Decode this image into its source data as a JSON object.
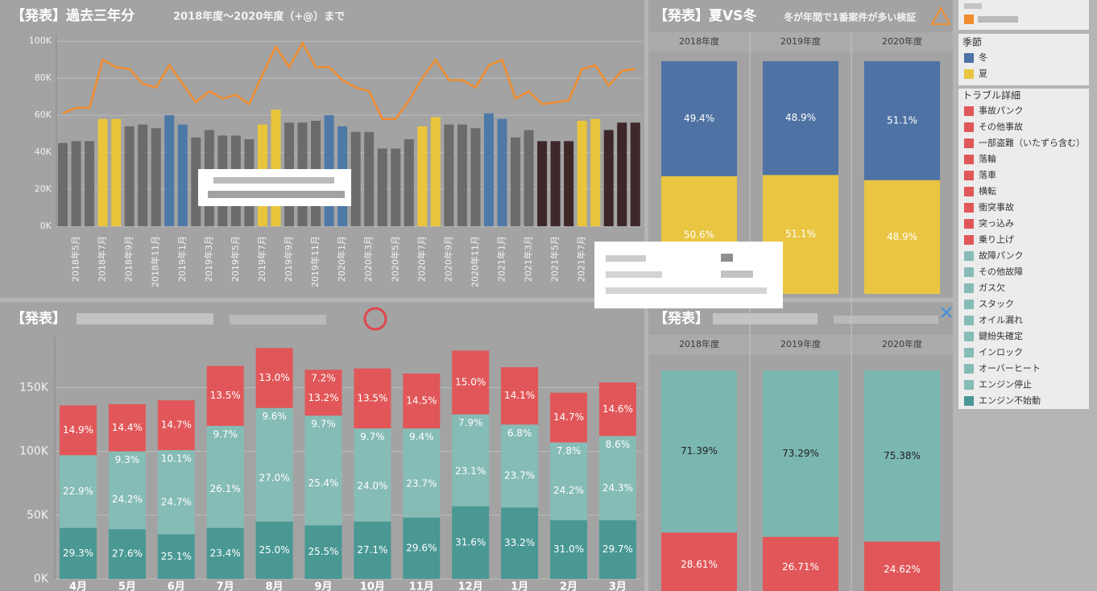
{
  "chart_data": [
    {
      "type": "combo",
      "title": "【発表】過去三年分",
      "subtitle": "2018年度～2020年度（+@）まで",
      "categories": [
        null,
        "2018年5月",
        null,
        "2018年7月",
        null,
        "2018年9月",
        null,
        "2018年11月",
        null,
        "2019年1月",
        null,
        "2019年3月",
        null,
        "2019年5月",
        null,
        "2019年7月",
        null,
        "2019年9月",
        null,
        "2019年11月",
        null,
        "2020年1月",
        null,
        "2020年3月",
        null,
        "2020年5月",
        null,
        "2020年7月",
        null,
        "2020年9月",
        null,
        "2020年11月",
        null,
        "2021年1月",
        null,
        "2021年3月",
        null,
        "2021年5月",
        null,
        "2021年7月",
        null,
        null,
        null,
        null
      ],
      "ylim": [
        0,
        104000
      ],
      "yticks": [
        {
          "value": 0,
          "label": "0K"
        },
        {
          "value": 20000,
          "label": "20K"
        },
        {
          "value": 40000,
          "label": "40K"
        },
        {
          "value": 60000,
          "label": "60K"
        },
        {
          "value": 80000,
          "label": "80K"
        },
        {
          "value": 100000,
          "label": "100K"
        }
      ],
      "grid": true,
      "series": [
        {
          "type": "bar",
          "values": [
            45000,
            46000,
            46000,
            58000,
            58000,
            54000,
            55000,
            53000,
            60000,
            55000,
            48000,
            52000,
            49000,
            49000,
            47000,
            55000,
            63000,
            56000,
            56000,
            57000,
            60000,
            54000,
            51000,
            51000,
            42000,
            42000,
            47000,
            54000,
            59000,
            55000,
            55000,
            53000,
            61000,
            58000,
            48000,
            52000,
            46000,
            46000,
            46000,
            57000,
            58000,
            52000,
            56000,
            56000
          ],
          "colors": [
            "#6b6b6b",
            "#6b6b6b",
            "#6b6b6b",
            "#eac53c",
            "#eac53c",
            "#6b6b6b",
            "#6b6b6b",
            "#6b6b6b",
            "#4e79a7",
            "#4e79a7",
            "#6b6b6b",
            "#6b6b6b",
            "#6b6b6b",
            "#6b6b6b",
            "#6b6b6b",
            "#eac53c",
            "#eac53c",
            "#6b6b6b",
            "#6b6b6b",
            "#6b6b6b",
            "#4e79a7",
            "#4e79a7",
            "#6b6b6b",
            "#6b6b6b",
            "#6b6b6b",
            "#6b6b6b",
            "#6b6b6b",
            "#eac53c",
            "#eac53c",
            "#6b6b6b",
            "#6b6b6b",
            "#6b6b6b",
            "#4e79a7",
            "#4e79a7",
            "#6b6b6b",
            "#6b6b6b",
            "#3d2728",
            "#3d2728",
            "#3d2728",
            "#eac53c",
            "#eac53c",
            "#3d2728",
            "#3d2728",
            "#3d2728"
          ]
        },
        {
          "type": "line",
          "color": "#f08c2e",
          "values": [
            61000,
            64000,
            64000,
            90000,
            86000,
            85000,
            77000,
            75000,
            87000,
            77000,
            67000,
            73000,
            69000,
            71000,
            66000,
            82000,
            97000,
            86000,
            99000,
            86000,
            86000,
            79000,
            75000,
            73000,
            58000,
            58000,
            68000,
            80000,
            90000,
            79000,
            79000,
            75000,
            87000,
            90000,
            69000,
            73000,
            66000,
            67000,
            68000,
            85000,
            87000,
            76000,
            84000,
            85000
          ]
        }
      ]
    },
    {
      "type": "bar",
      "stacking": "percent",
      "title": "【発表】夏VS冬",
      "subtitle": "冬が年間で1番案件が多い検証",
      "categories": [
        "2018年度",
        "2019年度",
        "2020年度"
      ],
      "legend_title": "季節",
      "series": [
        {
          "name": "冬",
          "color": "#4e72a4",
          "label_color": "#ffffff",
          "values": [
            49.4,
            48.9,
            51.1
          ],
          "value_labels": [
            "49.4%",
            "48.9%",
            "51.1%"
          ]
        },
        {
          "name": "夏",
          "color": "#e9c542",
          "label_color": "#ffffff",
          "values": [
            50.6,
            51.1,
            48.9
          ],
          "value_labels": [
            "50.6%",
            "51.1%",
            "48.9%"
          ]
        }
      ]
    },
    {
      "type": "bar",
      "stacking": "stacked",
      "title": "【発表】",
      "categories": [
        "4月",
        "5月",
        "6月",
        "7月",
        "8月",
        "9月",
        "10月",
        "11月",
        "12月",
        "1月",
        "2月",
        "3月"
      ],
      "ylim": [
        0,
        190000
      ],
      "yticks": [
        {
          "value": 0,
          "label": "0K"
        },
        {
          "value": 50000,
          "label": "50K"
        },
        {
          "value": 100000,
          "label": "100K"
        },
        {
          "value": 150000,
          "label": "150K"
        }
      ],
      "grid": true,
      "legend": {
        "title": "トラブル詳細",
        "items": [
          {
            "name": "事故パンク",
            "color": "#e15759"
          },
          {
            "name": "その他事故",
            "color": "#e15759"
          },
          {
            "name": "一部盗難（いたずら含む）",
            "color": "#e15759"
          },
          {
            "name": "落輪",
            "color": "#e15759"
          },
          {
            "name": "落車",
            "color": "#e15759"
          },
          {
            "name": "横転",
            "color": "#e15759"
          },
          {
            "name": "衝突事故",
            "color": "#e15759"
          },
          {
            "name": "突っ込み",
            "color": "#e15759"
          },
          {
            "name": "乗り上げ",
            "color": "#e15759"
          },
          {
            "name": "故障パンク",
            "color": "#86bcb6"
          },
          {
            "name": "その他故障",
            "color": "#86bcb6"
          },
          {
            "name": "ガス欠",
            "color": "#86bcb6"
          },
          {
            "name": "スタック",
            "color": "#86bcb6"
          },
          {
            "name": "オイル漏れ",
            "color": "#86bcb6"
          },
          {
            "name": "鍵紛失確定",
            "color": "#86bcb6"
          },
          {
            "name": "インロック",
            "color": "#86bcb6"
          },
          {
            "name": "オーバーヒート",
            "color": "#86bcb6"
          },
          {
            "name": "エンジン停止",
            "color": "#86bcb6"
          },
          {
            "name": "エンジン不始動",
            "color": "#499894"
          }
        ]
      },
      "series": [
        {
          "color": "#e15759",
          "values": [
            39000,
            37000,
            39000,
            47000,
            47000,
            36000,
            47000,
            43000,
            50000,
            45000,
            39000,
            42000
          ],
          "share_labels": [
            "14.9%",
            "14.4%",
            "14.7%",
            "13.5%",
            "13.0%",
            "13.2%",
            "13.5%",
            "14.5%",
            "15.0%",
            "14.1%",
            "14.7%",
            "14.6%"
          ],
          "upper_share_labels": [
            null,
            null,
            null,
            null,
            null,
            "7.2%",
            null,
            null,
            null,
            null,
            null,
            null
          ]
        },
        {
          "color": "#86bcb6",
          "values": [
            57000,
            61000,
            66000,
            80000,
            89000,
            86000,
            73000,
            70000,
            72000,
            65000,
            61000,
            66000
          ],
          "share_labels": [
            "22.9%",
            "24.2%",
            "24.7%",
            "26.1%",
            "27.0%",
            "25.4%",
            "24.0%",
            "23.7%",
            "23.1%",
            "23.7%",
            "24.2%",
            "24.3%"
          ],
          "upper_share_labels": [
            null,
            "9.3%",
            "10.1%",
            "9.7%",
            "9.6%",
            "9.7%",
            "9.7%",
            "9.4%",
            "7.9%",
            "6.8%",
            "7.8%",
            "8.6%"
          ]
        },
        {
          "color": "#499894",
          "values": [
            40000,
            39000,
            35000,
            40000,
            45000,
            42000,
            45000,
            48000,
            57000,
            56000,
            46000,
            46000
          ],
          "share_labels": [
            "29.3%",
            "27.6%",
            "25.1%",
            "23.4%",
            "25.0%",
            "25.5%",
            "27.1%",
            "29.6%",
            "31.6%",
            "33.2%",
            "31.0%",
            "29.7%"
          ]
        }
      ]
    },
    {
      "type": "bar",
      "stacking": "percent",
      "title": "【発表】",
      "categories": [
        "2018年度",
        "2019年度",
        "2020年度"
      ],
      "series": [
        {
          "color": "#7ab7b0",
          "label_color": "#222222",
          "values": [
            71.39,
            73.29,
            75.38
          ],
          "value_labels": [
            "71.39%",
            "73.29%",
            "75.38%"
          ]
        },
        {
          "color": "#e15759",
          "label_color": "#ffffff",
          "values": [
            28.61,
            26.71,
            24.62
          ],
          "value_labels": [
            "28.61%",
            "26.71%",
            "24.62%"
          ]
        }
      ]
    }
  ]
}
